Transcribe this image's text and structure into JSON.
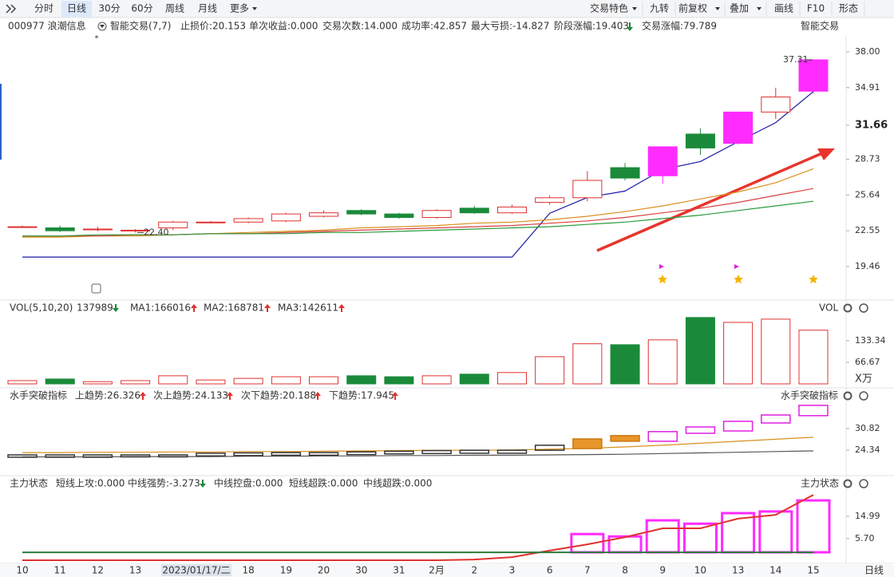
{
  "toolbar": {
    "left": [
      "分时",
      "日线",
      "30分",
      "60分",
      "周线",
      "月线",
      "更多"
    ],
    "right": [
      "交易特色",
      "九转",
      "前复权",
      "叠加",
      "画线",
      "F10",
      "形态"
    ]
  },
  "info": {
    "stock": "000977 浪潮信息",
    "indicator": "智能交易(7,7)",
    "right_label": "智能交易",
    "items": [
      {
        "text": "止损价:20.153",
        "color": "#1a1aa6"
      },
      {
        "text": "单次收益:0.000",
        "color": "#e0312f"
      },
      {
        "text": "交易次数:14.000",
        "color": "#333333"
      },
      {
        "text": "成功率:42.857",
        "color": "#e08a1e"
      },
      {
        "text": "最大亏损:-14.827",
        "color": "#1a1aa6"
      },
      {
        "text": "阶段涨幅:19.403",
        "color": "#e0312f"
      },
      {
        "text": "交易涨幅:79.789",
        "color": "#e020e0"
      }
    ]
  },
  "price": {
    "ylim": [
      16.98,
      38.34
    ],
    "yticks": [
      19.46,
      22.55,
      25.64,
      28.73,
      31.66,
      34.91,
      {
        "value": 38,
        "label": "38.00"
      }
    ],
    "open": [
      22.9,
      22.8,
      22.7,
      22.6,
      22.8,
      23.3,
      23.3,
      23.4,
      23.8,
      24.3,
      24.0,
      23.7,
      24.5,
      24.1,
      25.0,
      25.4,
      28.0,
      27.3,
      30.9,
      30.1,
      32.8,
      34.6
    ],
    "high": [
      23.0,
      23.0,
      22.9,
      22.7,
      23.4,
      23.4,
      23.7,
      24.1,
      24.3,
      24.4,
      24.1,
      24.4,
      24.7,
      24.8,
      25.6,
      27.7,
      28.4,
      29.8,
      31.4,
      32.8,
      34.9,
      37.31
    ],
    "low": [
      22.8,
      22.45,
      22.5,
      22.4,
      22.6,
      23.2,
      23.2,
      23.3,
      23.7,
      23.9,
      23.6,
      23.6,
      24.0,
      24.0,
      24.8,
      25.1,
      26.9,
      26.6,
      29.1,
      30.0,
      32.2,
      34.4
    ],
    "close": [
      22.9,
      22.55,
      22.7,
      22.6,
      23.3,
      23.3,
      23.6,
      24.0,
      24.1,
      24.0,
      23.7,
      24.3,
      24.1,
      24.6,
      25.4,
      26.9,
      27.1,
      29.8,
      29.7,
      32.8,
      34.1,
      37.31
    ],
    "candle_colors": [
      "#e0312f",
      "#1a8a3a",
      "#e0312f",
      "#e0312f",
      "#e0312f",
      "#e0312f",
      "#e0312f",
      "#e0312f",
      "#e0312f",
      "#1a8a3a",
      "#1a8a3a",
      "#e0312f",
      "#1a8a3a",
      "#e0312f",
      "#e0312f",
      "#e0312f",
      "#1a8a3a",
      "#ff2bff",
      "#1a8a3a",
      "#ff2bff",
      "#e0312f",
      "#ff2bff"
    ],
    "lines": [
      {
        "color": "#1a1aa6",
        "values": [
          20.28,
          20.28,
          20.28,
          20.28,
          20.28,
          20.28,
          20.28,
          20.28,
          20.28,
          20.28,
          20.28,
          20.28,
          20.28,
          20.28,
          24.06,
          25.43,
          25.98,
          27.84,
          28.53,
          30.24,
          31.89,
          34.57
        ]
      },
      {
        "color": "#d9901e",
        "values": [
          22.0,
          22.0,
          22.1,
          22.1,
          22.2,
          22.3,
          22.4,
          22.5,
          22.6,
          22.8,
          22.9,
          23.0,
          23.2,
          23.3,
          23.5,
          23.8,
          24.2,
          24.7,
          25.3,
          25.9,
          26.7,
          27.9
        ]
      },
      {
        "color": "#d84040",
        "values": [
          22.1,
          22.1,
          22.1,
          22.2,
          22.2,
          22.3,
          22.3,
          22.4,
          22.5,
          22.6,
          22.7,
          22.8,
          22.9,
          23.0,
          23.2,
          23.4,
          23.7,
          24.1,
          24.5,
          25.0,
          25.6,
          26.2
        ]
      },
      {
        "color": "#2a9a3a",
        "values": [
          22.1,
          22.1,
          22.2,
          22.2,
          22.2,
          22.3,
          22.3,
          22.3,
          22.4,
          22.4,
          22.5,
          22.6,
          22.7,
          22.8,
          22.9,
          23.1,
          23.3,
          23.6,
          23.9,
          24.3,
          24.7,
          25.1
        ]
      }
    ],
    "max_label": {
      "value": 37.31,
      "label": "37.31"
    },
    "min_label": {
      "value": 22.4,
      "label": "22.40"
    }
  },
  "volume": {
    "header": "VOL(5,10,20)",
    "last": "137989",
    "ma": [
      {
        "text": "MA1:166016",
        "color": "#e08a1e"
      },
      {
        "text": "MA2:168781",
        "color": "#e020e0"
      },
      {
        "text": "MA3:142611",
        "color": "#2a9a3a"
      }
    ],
    "right_label": "VOL",
    "unit": "X万",
    "ylim": [
      0,
      217
    ],
    "yticks": [
      133.34,
      66.67
    ],
    "values": [
      10,
      15,
      7,
      10,
      25,
      12,
      17,
      22,
      22,
      25,
      22,
      25,
      30,
      35,
      84,
      124,
      121,
      136,
      205,
      190,
      200,
      166
    ]
  },
  "sailor": {
    "header": "水手突破指标",
    "items": [
      {
        "text": "上趋势:26.326",
        "color": "#e020e0"
      },
      {
        "text": "次上趋势:24.133",
        "color": "#e08a1e"
      },
      {
        "text": "次下趋势:20.188",
        "color": "#666666"
      },
      {
        "text": "下趋势:17.945",
        "color": "#2a9a3a"
      }
    ],
    "right_label": "水手突破指标",
    "ylim": [
      18.1,
      38.5
    ],
    "yticks": [
      30.82,
      24.34
    ],
    "tops": [
      22.9,
      22.9,
      22.9,
      22.9,
      22.9,
      23.4,
      23.5,
      23.6,
      23.6,
      23.8,
      24.0,
      24.2,
      24.3,
      24.3,
      25.8,
      27.7,
      28.7,
      29.9,
      31.3,
      33.0,
      34.9,
      37.8
    ],
    "bottoms": [
      22.2,
      22.2,
      22.2,
      22.3,
      22.3,
      22.6,
      22.7,
      22.8,
      22.8,
      23.0,
      23.2,
      23.3,
      23.4,
      23.4,
      24.3,
      24.8,
      27.0,
      27.0,
      29.4,
      30.1,
      32.5,
      34.7
    ],
    "box_colors": [
      "#333333",
      "#333333",
      "#333333",
      "#333333",
      "#333333",
      "#333333",
      "#333333",
      "#333333",
      "#333333",
      "#333333",
      "#333333",
      "#333333",
      "#333333",
      "#333333",
      "#333333",
      "#c87a10",
      "#c87a10",
      "#e020e0",
      "#e020e0",
      "#e020e0",
      "#e020e0",
      "#e020e0"
    ],
    "box_fills": [
      "none",
      "none",
      "none",
      "none",
      "none",
      "none",
      "none",
      "none",
      "none",
      "none",
      "none",
      "none",
      "none",
      "none",
      "none",
      "#e8962a",
      "#e8962a",
      "none",
      "none",
      "none",
      "none",
      "none"
    ],
    "lines": [
      {
        "color": "#d9901e",
        "values": [
          23.6,
          23.6,
          23.7,
          23.7,
          23.8,
          23.8,
          23.9,
          23.9,
          24.0,
          24.1,
          24.2,
          24.3,
          24.3,
          24.4,
          24.6,
          24.9,
          25.3,
          25.8,
          26.4,
          27.0,
          27.6,
          28.2
        ]
      },
      {
        "color": "#555555",
        "values": [
          22.3,
          22.3,
          22.3,
          22.4,
          22.4,
          22.4,
          22.5,
          22.5,
          22.6,
          22.6,
          22.7,
          22.7,
          22.8,
          22.8,
          22.9,
          23.0,
          23.1,
          23.3,
          23.5,
          23.7,
          23.9,
          24.1
        ]
      }
    ]
  },
  "main_force": {
    "header": "主力状态",
    "items": [
      {
        "text": "短线上攻:0.000",
        "color": "#e020e0"
      },
      {
        "text": "中线强势:-3.273",
        "color": "#e0312f"
      },
      {
        "text": "中线控盘:0.000",
        "color": "#e08a1e"
      },
      {
        "text": "短线超跌:0.000",
        "color": "#1a1aa6"
      },
      {
        "text": "中线超跌:0.000",
        "color": "#2a9a3a"
      }
    ],
    "right_label": "主力状态",
    "ylim": [
      -4.3,
      25.6
    ],
    "yticks": [
      14.99,
      {
        "value": 5.7,
        "label": "5.70"
      }
    ],
    "bars": [
      null,
      null,
      null,
      null,
      null,
      null,
      null,
      null,
      null,
      null,
      null,
      null,
      null,
      null,
      null,
      7.6,
      6.6,
      13.3,
      11.9,
      16.3,
      17.0,
      21.6
    ],
    "lines": [
      {
        "color": "#e0312f",
        "values": [
          -3.3,
          -3.3,
          -3.3,
          -3.3,
          -3.3,
          -3.3,
          -3.3,
          -3.3,
          -3.3,
          -3.3,
          -3.3,
          -3.3,
          -3.0,
          -2.0,
          0.7,
          3.3,
          6.3,
          10.0,
          10.0,
          14.0,
          15.6,
          23.9
        ]
      },
      {
        "color": "#2a7a3a",
        "values": [
          0,
          0,
          0,
          0,
          0,
          0,
          0,
          0,
          0,
          0,
          0,
          0,
          0,
          0,
          0,
          0,
          0,
          0,
          0,
          0,
          0,
          0
        ]
      }
    ]
  },
  "xaxis": {
    "categories": [
      "10",
      "11",
      "12",
      "13",
      null,
      "2023/01/17/二",
      "18",
      "19",
      "20",
      "30",
      "31",
      "2月",
      "2",
      "3",
      "6",
      "7",
      "8",
      "9",
      "10",
      "13",
      "14",
      "15"
    ],
    "period": "日线"
  }
}
